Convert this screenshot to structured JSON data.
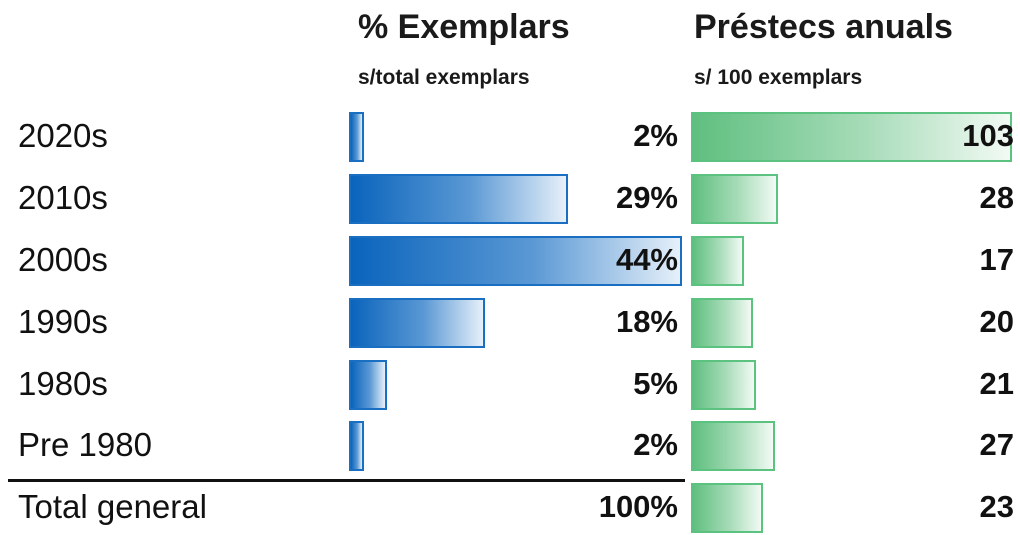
{
  "headers": {
    "col1_title": "% Exemplars",
    "col1_subtitle": "s/total exemplars",
    "col2_title": "Préstecs anuals",
    "col2_subtitle": "s/ 100 exemplars"
  },
  "chart_data": {
    "type": "bar",
    "categories": [
      "2020s",
      "2010s",
      "2000s",
      "1990s",
      "1980s",
      "Pre 1980",
      "Total general"
    ],
    "series": [
      {
        "name": "% Exemplars",
        "values": [
          2,
          29,
          44,
          18,
          5,
          2,
          100
        ],
        "labels": [
          "2%",
          "29%",
          "44%",
          "18%",
          "5%",
          "2%",
          "100%"
        ],
        "color": "#1b6fc2"
      },
      {
        "name": "Préstecs anuals",
        "values": [
          103,
          28,
          17,
          20,
          21,
          27,
          23
        ],
        "labels": [
          "103",
          "28",
          "17",
          "20",
          "21",
          "27",
          "23"
        ],
        "color": "#5cc27f"
      }
    ],
    "total_row_has_bar": [
      false,
      true
    ]
  }
}
